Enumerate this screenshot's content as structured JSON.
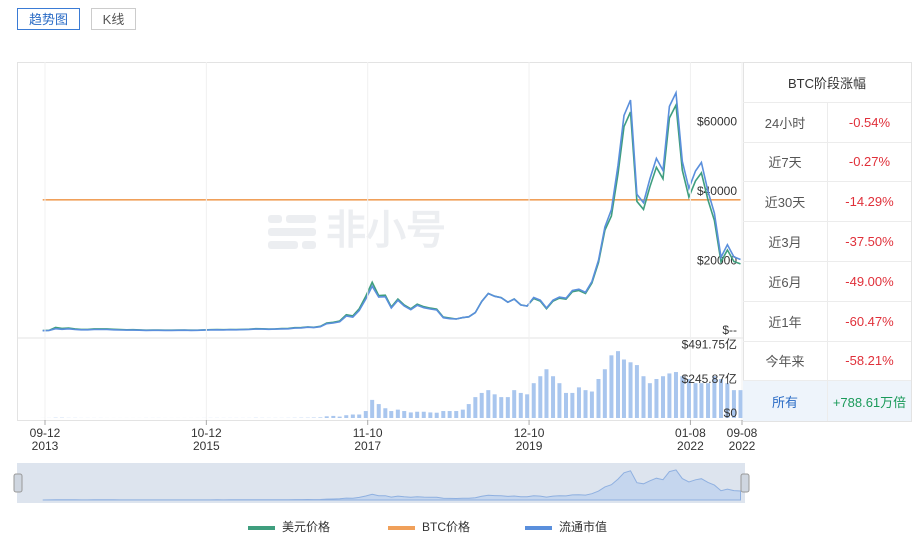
{
  "tabs": [
    "趋势图",
    "K线"
  ],
  "table": {
    "title": "BTC阶段涨幅",
    "rows": [
      [
        "24小时",
        "-0.54%"
      ],
      [
        "近7天",
        "-0.27%"
      ],
      [
        "近30天",
        "-14.29%"
      ],
      [
        "近3月",
        "-37.50%"
      ],
      [
        "近6月",
        "-49.00%"
      ],
      [
        "近1年",
        "-60.47%"
      ],
      [
        "今年来",
        "-58.21%"
      ],
      [
        "所有",
        "+788.61万倍"
      ]
    ]
  },
  "chart_data": [
    {
      "type": "line",
      "watermark": "非小号",
      "legend": "bottom",
      "x": [
        "2013-09",
        "2013-10",
        "2013-11",
        "2013-12",
        "2014-01",
        "2014-02",
        "2014-03",
        "2014-04",
        "2014-05",
        "2014-06",
        "2014-07",
        "2014-08",
        "2014-09",
        "2014-10",
        "2014-11",
        "2014-12",
        "2015-01",
        "2015-02",
        "2015-03",
        "2015-04",
        "2015-05",
        "2015-06",
        "2015-07",
        "2015-08",
        "2015-09",
        "2015-10",
        "2015-11",
        "2015-12",
        "2016-01",
        "2016-02",
        "2016-03",
        "2016-04",
        "2016-05",
        "2016-06",
        "2016-07",
        "2016-08",
        "2016-09",
        "2016-10",
        "2016-11",
        "2016-12",
        "2017-01",
        "2017-02",
        "2017-03",
        "2017-04",
        "2017-05",
        "2017-06",
        "2017-07",
        "2017-08",
        "2017-09",
        "2017-10",
        "2017-11",
        "2017-12",
        "2018-01",
        "2018-02",
        "2018-03",
        "2018-04",
        "2018-05",
        "2018-06",
        "2018-07",
        "2018-08",
        "2018-09",
        "2018-10",
        "2018-11",
        "2018-12",
        "2019-01",
        "2019-02",
        "2019-03",
        "2019-04",
        "2019-05",
        "2019-06",
        "2019-07",
        "2019-08",
        "2019-09",
        "2019-10",
        "2019-11",
        "2019-12",
        "2020-01",
        "2020-02",
        "2020-03",
        "2020-04",
        "2020-05",
        "2020-06",
        "2020-07",
        "2020-08",
        "2020-09",
        "2020-10",
        "2020-11",
        "2020-12",
        "2021-01",
        "2021-02",
        "2021-03",
        "2021-04",
        "2021-05",
        "2021-06",
        "2021-07",
        "2021-08",
        "2021-09",
        "2021-10",
        "2021-11",
        "2021-12",
        "2022-01",
        "2022-02",
        "2022-03",
        "2022-04",
        "2022-05",
        "2022-06",
        "2022-07",
        "2022-08",
        "2022-09"
      ],
      "xlim": [
        "2013-09-12",
        "2022-09-08"
      ],
      "ylim": [
        0,
        77400
      ],
      "yticks": [
        {
          "value": 0,
          "label": "$--"
        },
        {
          "value": 20000,
          "label": "$20000"
        },
        {
          "value": 40000,
          "label": "$40000"
        },
        {
          "value": 60000,
          "label": "$60000"
        }
      ],
      "y2lim": [
        0,
        13800
      ],
      "y3lim": [
        0,
        2.05
      ],
      "series": [
        {
          "name": "美元价格",
          "color": "#3f9e7e",
          "values": [
            130,
            200,
            1000,
            750,
            850,
            600,
            450,
            450,
            600,
            600,
            590,
            480,
            390,
            340,
            370,
            320,
            220,
            250,
            250,
            225,
            230,
            260,
            285,
            230,
            235,
            315,
            380,
            430,
            370,
            435,
            415,
            450,
            530,
            670,
            625,
            575,
            610,
            700,
            740,
            960,
            970,
            1190,
            1070,
            1350,
            2300,
            2500,
            2880,
            4700,
            4340,
            6400,
            10000,
            14000,
            10200,
            10300,
            6900,
            9200,
            7500,
            6400,
            7700,
            7000,
            6600,
            6300,
            4000,
            3700,
            3450,
            3850,
            4100,
            5300,
            8500,
            10800,
            10000,
            9600,
            8300,
            9200,
            7500,
            7200,
            9350,
            8600,
            6400,
            8600,
            9450,
            9150,
            11300,
            11650,
            10800,
            13800,
            19700,
            29000,
            33100,
            45200,
            58800,
            63000,
            37300,
            35000,
            41500,
            47100,
            43800,
            61300,
            65000,
            46300,
            38500,
            43200,
            45500,
            37700,
            31800,
            19900,
            23300,
            20000,
            19300
          ]
        },
        {
          "name": "BTC价格",
          "color": "#f0a05a",
          "axis": "y3",
          "values": [
            1,
            1,
            1,
            1,
            1,
            1,
            1,
            1,
            1,
            1,
            1,
            1,
            1,
            1,
            1,
            1,
            1,
            1,
            1,
            1,
            1,
            1,
            1,
            1,
            1,
            1,
            1,
            1,
            1,
            1,
            1,
            1,
            1,
            1,
            1,
            1,
            1,
            1,
            1,
            1,
            1,
            1,
            1,
            1,
            1,
            1,
            1,
            1,
            1,
            1,
            1,
            1,
            1,
            1,
            1,
            1,
            1,
            1,
            1,
            1,
            1,
            1,
            1,
            1,
            1,
            1,
            1,
            1,
            1,
            1,
            1,
            1,
            1,
            1,
            1,
            1,
            1,
            1,
            1,
            1,
            1,
            1,
            1,
            1,
            1,
            1,
            1,
            1,
            1,
            1,
            1,
            1,
            1,
            1,
            1,
            1,
            1,
            1,
            1,
            1,
            1,
            1,
            1,
            1,
            1,
            1,
            1,
            1,
            1
          ]
        },
        {
          "name": "流通市值",
          "color": "#5a8fdc",
          "axis": "y2",
          "values": [
            15,
            24,
            118,
            89,
            111,
            78,
            59,
            59,
            78,
            78,
            77,
            62,
            51,
            44,
            48,
            42,
            31,
            36,
            36,
            32,
            33,
            37,
            41,
            33,
            34,
            45,
            54,
            61,
            57,
            67,
            64,
            70,
            82,
            104,
            97,
            89,
            95,
            109,
            115,
            149,
            159,
            195,
            175,
            221,
            377,
            410,
            472,
            771,
            712,
            1050,
            1640,
            2296,
            1744,
            1761,
            1180,
            1573,
            1283,
            1094,
            1317,
            1197,
            1129,
            1077,
            684,
            633,
            614,
            685,
            730,
            943,
            1513,
            1922,
            1780,
            1709,
            1477,
            1638,
            1335,
            1282,
            1720,
            1582,
            1178,
            1582,
            1739,
            1684,
            2079,
            2144,
            1987,
            2539,
            3625,
            5336,
            6223,
            8498,
            11054,
            11844,
            7012,
            6580,
            7802,
            8855,
            8234,
            11524,
            12220,
            8704,
            7315,
            8208,
            8645,
            7163,
            6042,
            3781,
            4427,
            3800,
            3667
          ]
        }
      ]
    },
    {
      "type": "bar",
      "color": "#a9c6ee",
      "grid": true,
      "x": [
        "2013-09",
        "2013-10",
        "2013-11",
        "2013-12",
        "2014-01",
        "2014-02",
        "2014-03",
        "2014-04",
        "2014-05",
        "2014-06",
        "2014-07",
        "2014-08",
        "2014-09",
        "2014-10",
        "2014-11",
        "2014-12",
        "2015-01",
        "2015-02",
        "2015-03",
        "2015-04",
        "2015-05",
        "2015-06",
        "2015-07",
        "2015-08",
        "2015-09",
        "2015-10",
        "2015-11",
        "2015-12",
        "2016-01",
        "2016-02",
        "2016-03",
        "2016-04",
        "2016-05",
        "2016-06",
        "2016-07",
        "2016-08",
        "2016-09",
        "2016-10",
        "2016-11",
        "2016-12",
        "2017-01",
        "2017-02",
        "2017-03",
        "2017-04",
        "2017-05",
        "2017-06",
        "2017-07",
        "2017-08",
        "2017-09",
        "2017-10",
        "2017-11",
        "2017-12",
        "2018-01",
        "2018-02",
        "2018-03",
        "2018-04",
        "2018-05",
        "2018-06",
        "2018-07",
        "2018-08",
        "2018-09",
        "2018-10",
        "2018-11",
        "2018-12",
        "2019-01",
        "2019-02",
        "2019-03",
        "2019-04",
        "2019-05",
        "2019-06",
        "2019-07",
        "2019-08",
        "2019-09",
        "2019-10",
        "2019-11",
        "2019-12",
        "2020-01",
        "2020-02",
        "2020-03",
        "2020-04",
        "2020-05",
        "2020-06",
        "2020-07",
        "2020-08",
        "2020-09",
        "2020-10",
        "2020-11",
        "2020-12",
        "2021-01",
        "2021-02",
        "2021-03",
        "2021-04",
        "2021-05",
        "2021-06",
        "2021-07",
        "2021-08",
        "2021-09",
        "2021-10",
        "2021-11",
        "2021-12",
        "2022-01",
        "2022-02",
        "2022-03",
        "2022-04",
        "2022-05",
        "2022-06",
        "2022-07",
        "2022-08",
        "2022-09"
      ],
      "values": [
        0.3,
        0.5,
        2,
        2,
        1,
        1,
        0.5,
        0.5,
        0.5,
        0.5,
        0.3,
        0.3,
        0.3,
        0.3,
        0.3,
        0.3,
        0.5,
        0.5,
        0.5,
        0.3,
        0.3,
        0.3,
        0.3,
        0.3,
        0.3,
        0.5,
        0.8,
        0.8,
        0.6,
        0.6,
        0.6,
        0.6,
        0.7,
        1.5,
        1,
        0.8,
        0.8,
        0.8,
        1,
        1.5,
        2,
        2,
        3,
        4,
        12,
        15,
        10,
        20,
        25,
        25,
        50,
        130,
        100,
        70,
        50,
        60,
        50,
        40,
        45,
        45,
        40,
        38,
        50,
        50,
        50,
        60,
        100,
        150,
        180,
        200,
        170,
        150,
        150,
        200,
        180,
        170,
        250,
        300,
        350,
        300,
        250,
        180,
        180,
        220,
        200,
        190,
        280,
        350,
        450,
        480,
        420,
        400,
        380,
        300,
        250,
        280,
        300,
        320,
        330,
        300,
        280,
        250,
        250,
        250,
        300,
        280,
        250,
        200,
        200
      ],
      "xlim": [
        "2013-09-12",
        "2022-09-08"
      ],
      "xticks": [
        {
          "value": "2013-09-12",
          "label": "09-12\n2013"
        },
        {
          "value": "2015-10-12",
          "label": "10-12\n2015"
        },
        {
          "value": "2017-11-10",
          "label": "11-10\n2017"
        },
        {
          "value": "2019-12-10",
          "label": "12-10\n2019"
        },
        {
          "value": "2022-01-08",
          "label": "01-08\n2022"
        },
        {
          "value": "2022-09-08",
          "label": "09-08\n2022"
        }
      ],
      "ylim": [
        0,
        560
      ],
      "yticks": [
        {
          "value": 0,
          "label": "$0"
        },
        {
          "value": 245.87,
          "label": "$245.87亿"
        },
        {
          "value": 491.75,
          "label": "$491.75亿"
        }
      ]
    }
  ]
}
